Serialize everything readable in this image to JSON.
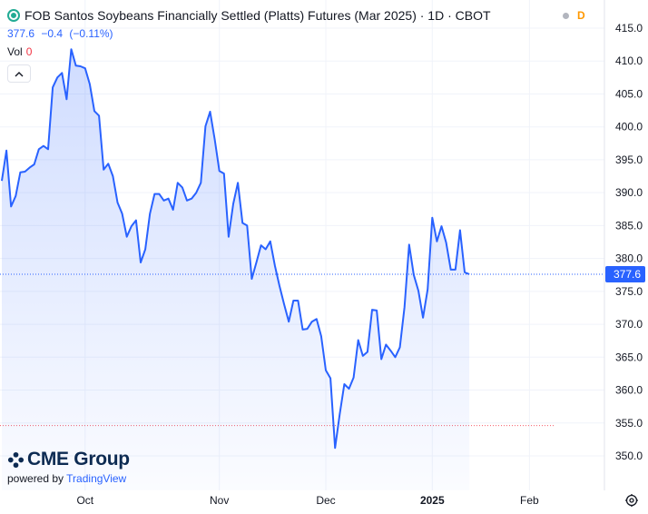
{
  "header": {
    "title": "FOB Santos Soybeans Financially Settled (Platts) Futures (Mar 2025) · 1D · CBOT",
    "delayed_badge": "D",
    "price": "377.6",
    "change": "−0.4",
    "change_pct": "(−0.11%)",
    "vol_label": "Vol",
    "vol_value": "0"
  },
  "branding": {
    "name": "CME Group",
    "powered_by": "powered by",
    "partner": "TradingView"
  },
  "price_tag": "377.6",
  "colors": {
    "line": "#2962ff",
    "area_top": "#2962ff",
    "brand_blue": "#2962ff",
    "cme_navy": "#0d2b52",
    "delayed": "#ff9800",
    "negative": "#f23645",
    "low_marker": "#f23645"
  },
  "chart_data": {
    "type": "area",
    "title": "FOB Santos Soybeans Financially Settled (Platts) Futures (Mar 2025)",
    "interval": "1D",
    "exchange": "CBOT",
    "x_ticks": [
      "Oct",
      "Nov",
      "Dec",
      "2025",
      "Feb"
    ],
    "y_ticks": [
      "415.0",
      "410.0",
      "405.0",
      "400.0",
      "395.0",
      "390.0",
      "385.0",
      "380.0",
      "375.0",
      "370.0",
      "365.0",
      "360.0",
      "355.0",
      "350.0"
    ],
    "ylim": [
      347,
      417
    ],
    "last_price": 377.6,
    "reference_line": 354.6,
    "grid": true,
    "x_unit": "trading days",
    "x": [
      0,
      1,
      2,
      3,
      4,
      5,
      6,
      7,
      8,
      9,
      10,
      11,
      12,
      13,
      14,
      15,
      16,
      17,
      18,
      19,
      20,
      21,
      22,
      23,
      24,
      25,
      26,
      27,
      28,
      29,
      30,
      31,
      32,
      33,
      34,
      35,
      36,
      37,
      38,
      39,
      40,
      41,
      42,
      43,
      44,
      45,
      46,
      47,
      48,
      49,
      50,
      51,
      52,
      53,
      54,
      55,
      56,
      57,
      58,
      59,
      60,
      61,
      62,
      63,
      64,
      65,
      66,
      67,
      68,
      69,
      70,
      71,
      72,
      73,
      74,
      75,
      76,
      77,
      78,
      79,
      80,
      81,
      82,
      83,
      84,
      85,
      86,
      87,
      88,
      89,
      90,
      91,
      92,
      93,
      94,
      95,
      96,
      97,
      98,
      99,
      100,
      101,
      102,
      103,
      104,
      105,
      106,
      107,
      108,
      109,
      110,
      111,
      112,
      113,
      114,
      115,
      116,
      117,
      118,
      119,
      120,
      121
    ],
    "values": [
      391.8,
      396.4,
      387.9,
      389.5,
      393.1,
      393.2,
      393.8,
      394.3,
      396.6,
      397.1,
      396.6,
      406.0,
      407.5,
      408.2,
      404.2,
      411.8,
      409.3,
      409.2,
      408.9,
      406.5,
      402.4,
      401.7,
      393.5,
      394.4,
      392.5,
      388.5,
      386.8,
      383.3,
      384.9,
      385.8,
      379.4,
      381.4,
      386.8,
      389.8,
      389.8,
      388.8,
      389.1,
      387.4,
      391.5,
      390.8,
      388.8,
      389.1,
      390.0,
      391.5,
      400.1,
      402.3,
      398.1,
      393.3,
      392.9,
      383.3,
      388.3,
      391.5,
      385.4,
      385.0,
      376.9,
      379.4,
      382.0,
      381.4,
      382.6,
      378.9,
      375.8,
      373.0,
      370.4,
      373.6,
      373.6,
      369.2,
      369.3,
      370.4,
      370.8,
      368.2,
      363.0,
      361.8,
      351.2,
      356.3,
      360.9,
      360.2,
      361.9,
      367.6,
      365.2,
      365.8,
      372.2,
      372.1,
      364.7,
      366.9,
      366.0,
      365.0,
      366.5,
      372.6,
      382.1,
      377.5,
      375.1,
      371.0,
      375.3,
      386.2,
      382.6,
      384.9,
      382.4,
      378.3,
      378.3,
      384.3,
      377.9,
      377.6,
      null,
      null,
      null,
      null,
      null,
      null,
      null,
      null,
      null,
      null,
      null,
      null,
      null,
      null,
      null,
      null,
      null,
      null,
      null,
      null
    ],
    "x_tick_positions": [
      18,
      47,
      70,
      93,
      114
    ]
  }
}
